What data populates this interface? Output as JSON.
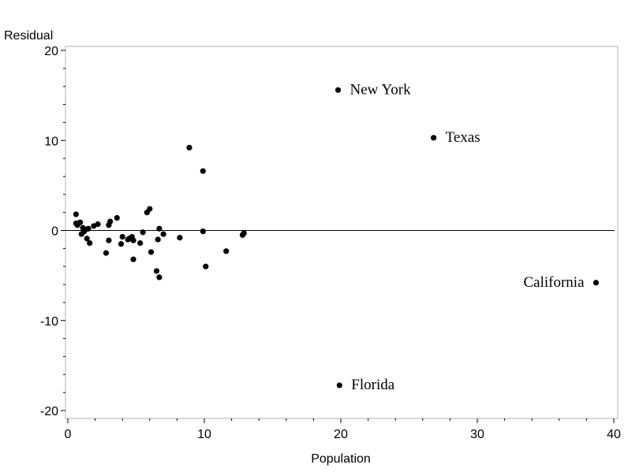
{
  "chart_data": {
    "type": "scatter",
    "title": "",
    "xlabel": "Population",
    "ylabel": "Residual",
    "xlim": [
      0,
      40
    ],
    "ylim": [
      -20,
      20
    ],
    "x_ticks": [
      0,
      10,
      20,
      30,
      40
    ],
    "y_ticks": [
      -20,
      -10,
      0,
      10,
      20
    ],
    "reference_line_y": 0,
    "grid": false,
    "legend": "none",
    "marker_color": "#000000",
    "points": [
      {
        "x": 0.6,
        "y": 1.8
      },
      {
        "x": 0.6,
        "y": 0.8
      },
      {
        "x": 0.7,
        "y": 0.6
      },
      {
        "x": 0.9,
        "y": 0.9
      },
      {
        "x": 1.0,
        "y": -0.4
      },
      {
        "x": 1.1,
        "y": 0.3
      },
      {
        "x": 1.2,
        "y": -0.1
      },
      {
        "x": 1.3,
        "y": 0.1
      },
      {
        "x": 1.4,
        "y": -0.9
      },
      {
        "x": 1.5,
        "y": 0.2
      },
      {
        "x": 1.6,
        "y": -1.4
      },
      {
        "x": 1.9,
        "y": 0.5
      },
      {
        "x": 2.2,
        "y": 0.7
      },
      {
        "x": 2.8,
        "y": -2.5
      },
      {
        "x": 3.0,
        "y": -1.1
      },
      {
        "x": 3.0,
        "y": 0.6
      },
      {
        "x": 3.1,
        "y": 1.0
      },
      {
        "x": 3.6,
        "y": 1.4
      },
      {
        "x": 3.9,
        "y": -1.5
      },
      {
        "x": 4.0,
        "y": -0.7
      },
      {
        "x": 4.4,
        "y": -1.0
      },
      {
        "x": 4.5,
        "y": -0.9
      },
      {
        "x": 4.7,
        "y": -0.7
      },
      {
        "x": 4.8,
        "y": -1.1
      },
      {
        "x": 4.8,
        "y": -3.2
      },
      {
        "x": 5.3,
        "y": -1.4
      },
      {
        "x": 5.5,
        "y": -0.2
      },
      {
        "x": 5.8,
        "y": 2.0
      },
      {
        "x": 6.0,
        "y": 2.4
      },
      {
        "x": 6.1,
        "y": -2.4
      },
      {
        "x": 6.5,
        "y": -4.5
      },
      {
        "x": 6.6,
        "y": -1.0
      },
      {
        "x": 6.7,
        "y": 0.2
      },
      {
        "x": 6.7,
        "y": -5.2
      },
      {
        "x": 7.0,
        "y": -0.4
      },
      {
        "x": 8.2,
        "y": -0.8
      },
      {
        "x": 8.9,
        "y": 9.2
      },
      {
        "x": 9.9,
        "y": 6.6
      },
      {
        "x": 9.9,
        "y": -0.1
      },
      {
        "x": 10.1,
        "y": -4.0
      },
      {
        "x": 11.6,
        "y": -2.3
      },
      {
        "x": 12.8,
        "y": -0.5
      },
      {
        "x": 12.9,
        "y": -0.3
      },
      {
        "x": 19.8,
        "y": 15.6,
        "label": "New York"
      },
      {
        "x": 26.8,
        "y": 10.3,
        "label": "Texas"
      },
      {
        "x": 38.7,
        "y": -5.8,
        "label": "California"
      },
      {
        "x": 19.9,
        "y": -17.2,
        "label": "Florida"
      }
    ]
  }
}
